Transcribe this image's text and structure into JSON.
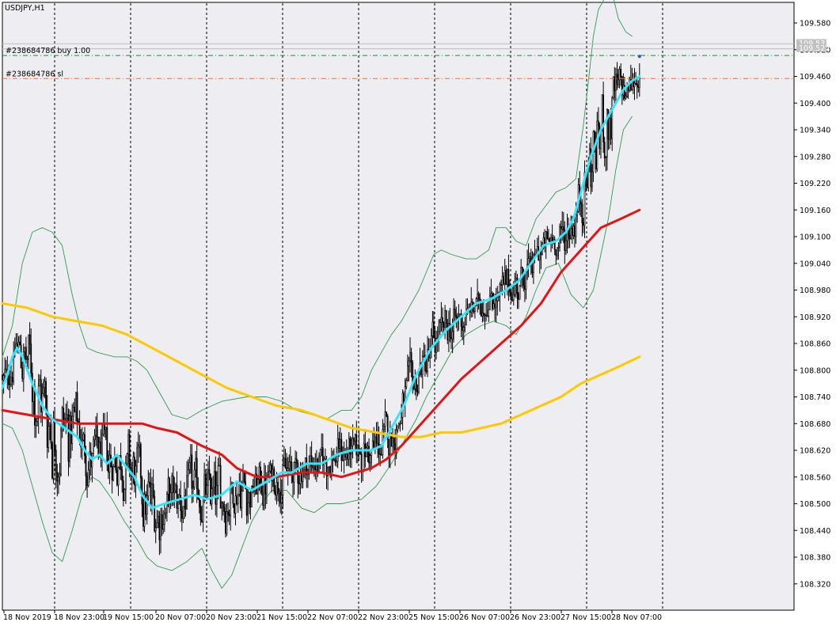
{
  "chart_data": {
    "type": "candlestick",
    "title": "USDJPY,H1",
    "colors": {
      "background": "#ffffff",
      "plot_background": "#ededf2",
      "grid": "#000000",
      "candle": "#000000",
      "ma_fast": "#33e6ff",
      "ma_mid": "#e01515",
      "ma_slow": "#ffc800",
      "bollinger": "#2e9e4e",
      "order_line": "#1a8a3a",
      "sl_line": "#ff6a2a",
      "price_line": "#c0c0c0"
    },
    "y_axis": {
      "min": 108.28,
      "max": 109.63,
      "ticks": [
        "109.580",
        "109.520",
        "109.460",
        "109.400",
        "109.340",
        "109.280",
        "109.220",
        "109.160",
        "109.100",
        "109.040",
        "108.980",
        "108.920",
        "108.860",
        "108.800",
        "108.740",
        "108.680",
        "108.620",
        "108.560",
        "108.500",
        "108.440",
        "108.380",
        "108.320"
      ]
    },
    "x_axis": {
      "ticks": [
        "18 Nov 2019",
        "18 Nov 23:00",
        "19 Nov 15:00",
        "20 Nov 07:00",
        "20 Nov 23:00",
        "21 Nov 15:00",
        "22 Nov 07:00",
        "22 Nov 23:00",
        "25 Nov 15:00",
        "26 Nov 07:00",
        "26 Nov 23:00",
        "27 Nov 15:00",
        "28 Nov 07:00"
      ],
      "vertical_grid_count": 9
    },
    "price_labels": [
      {
        "value": "109.533",
        "price": 109.533
      },
      {
        "value": "109.522",
        "price": 109.522
      }
    ],
    "orders": [
      {
        "label": "#238684786 buy 1.00",
        "price": 109.507,
        "kind": "entry"
      },
      {
        "label": "#238684786 sl",
        "price": 109.455,
        "kind": "stop"
      }
    ],
    "ma_fast": [
      [
        0,
        108.76
      ],
      [
        4,
        108.79
      ],
      [
        8,
        108.83
      ],
      [
        12,
        108.85
      ],
      [
        16,
        108.83
      ],
      [
        24,
        108.77
      ],
      [
        32,
        108.72
      ],
      [
        40,
        108.69
      ],
      [
        50,
        108.67
      ],
      [
        60,
        108.65
      ],
      [
        66,
        108.62
      ],
      [
        72,
        108.6
      ],
      [
        78,
        108.61
      ],
      [
        84,
        108.59
      ],
      [
        92,
        108.61
      ],
      [
        100,
        108.58
      ],
      [
        106,
        108.56
      ],
      [
        112,
        108.52
      ],
      [
        120,
        108.49
      ],
      [
        130,
        108.5
      ],
      [
        142,
        108.51
      ],
      [
        154,
        108.52
      ],
      [
        164,
        108.51
      ],
      [
        176,
        108.52
      ],
      [
        188,
        108.55
      ],
      [
        200,
        108.53
      ],
      [
        212,
        108.55
      ],
      [
        224,
        108.57
      ],
      [
        232,
        108.57
      ],
      [
        244,
        108.59
      ],
      [
        256,
        108.59
      ],
      [
        268,
        108.61
      ],
      [
        280,
        108.62
      ],
      [
        296,
        108.62
      ],
      [
        304,
        108.63
      ],
      [
        312,
        108.67
      ],
      [
        322,
        108.72
      ],
      [
        332,
        108.79
      ],
      [
        344,
        108.85
      ],
      [
        356,
        108.89
      ],
      [
        368,
        108.92
      ],
      [
        380,
        108.95
      ],
      [
        392,
        108.96
      ],
      [
        404,
        108.98
      ],
      [
        414,
        109.0
      ],
      [
        424,
        109.04
      ],
      [
        434,
        109.08
      ],
      [
        444,
        109.09
      ],
      [
        452,
        109.11
      ],
      [
        458,
        109.14
      ],
      [
        464,
        109.2
      ],
      [
        472,
        109.28
      ],
      [
        480,
        109.34
      ],
      [
        486,
        109.37
      ],
      [
        492,
        109.4
      ],
      [
        498,
        109.43
      ],
      [
        505,
        109.45
      ],
      [
        511,
        109.46
      ]
    ],
    "ma_mid": [
      [
        0,
        108.71
      ],
      [
        20,
        108.7
      ],
      [
        40,
        108.69
      ],
      [
        60,
        108.68
      ],
      [
        80,
        108.68
      ],
      [
        100,
        108.68
      ],
      [
        112,
        108.68
      ],
      [
        124,
        108.67
      ],
      [
        140,
        108.66
      ],
      [
        160,
        108.63
      ],
      [
        176,
        108.61
      ],
      [
        188,
        108.58
      ],
      [
        204,
        108.56
      ],
      [
        220,
        108.56
      ],
      [
        240,
        108.57
      ],
      [
        256,
        108.57
      ],
      [
        272,
        108.56
      ],
      [
        284,
        108.57
      ],
      [
        296,
        108.58
      ],
      [
        308,
        108.6
      ],
      [
        320,
        108.63
      ],
      [
        336,
        108.68
      ],
      [
        352,
        108.73
      ],
      [
        368,
        108.78
      ],
      [
        384,
        108.82
      ],
      [
        400,
        108.86
      ],
      [
        416,
        108.9
      ],
      [
        432,
        108.95
      ],
      [
        448,
        109.02
      ],
      [
        464,
        109.07
      ],
      [
        480,
        109.12
      ],
      [
        496,
        109.14
      ],
      [
        511,
        109.16
      ]
    ],
    "ma_slow": [
      [
        0,
        108.95
      ],
      [
        20,
        108.94
      ],
      [
        40,
        108.92
      ],
      [
        60,
        108.91
      ],
      [
        80,
        108.9
      ],
      [
        100,
        108.88
      ],
      [
        120,
        108.85
      ],
      [
        140,
        108.82
      ],
      [
        160,
        108.79
      ],
      [
        180,
        108.76
      ],
      [
        200,
        108.74
      ],
      [
        220,
        108.72
      ],
      [
        240,
        108.71
      ],
      [
        260,
        108.69
      ],
      [
        280,
        108.67
      ],
      [
        300,
        108.66
      ],
      [
        320,
        108.65
      ],
      [
        336,
        108.65
      ],
      [
        352,
        108.66
      ],
      [
        368,
        108.66
      ],
      [
        384,
        108.67
      ],
      [
        400,
        108.68
      ],
      [
        416,
        108.7
      ],
      [
        432,
        108.72
      ],
      [
        448,
        108.74
      ],
      [
        464,
        108.77
      ],
      [
        480,
        108.79
      ],
      [
        496,
        108.81
      ],
      [
        511,
        108.83
      ]
    ],
    "bb_upper": [
      [
        0,
        108.83
      ],
      [
        8,
        108.9
      ],
      [
        16,
        109.04
      ],
      [
        24,
        109.11
      ],
      [
        32,
        109.12
      ],
      [
        40,
        109.11
      ],
      [
        48,
        109.08
      ],
      [
        56,
        108.97
      ],
      [
        62,
        108.9
      ],
      [
        68,
        108.85
      ],
      [
        76,
        108.84
      ],
      [
        90,
        108.83
      ],
      [
        100,
        108.83
      ],
      [
        108,
        108.82
      ],
      [
        116,
        108.8
      ],
      [
        126,
        108.75
      ],
      [
        136,
        108.7
      ],
      [
        148,
        108.69
      ],
      [
        160,
        108.71
      ],
      [
        176,
        108.73
      ],
      [
        196,
        108.74
      ],
      [
        212,
        108.74
      ],
      [
        224,
        108.73
      ],
      [
        236,
        108.71
      ],
      [
        248,
        108.7
      ],
      [
        260,
        108.69
      ],
      [
        272,
        108.71
      ],
      [
        280,
        108.71
      ],
      [
        288,
        108.74
      ],
      [
        296,
        108.8
      ],
      [
        304,
        108.84
      ],
      [
        312,
        108.88
      ],
      [
        320,
        108.91
      ],
      [
        328,
        108.95
      ],
      [
        334,
        108.98
      ],
      [
        340,
        109.02
      ],
      [
        346,
        109.06
      ],
      [
        352,
        109.07
      ],
      [
        360,
        109.06
      ],
      [
        372,
        109.05
      ],
      [
        380,
        109.05
      ],
      [
        390,
        109.07
      ],
      [
        396,
        109.12
      ],
      [
        404,
        109.12
      ],
      [
        412,
        109.09
      ],
      [
        420,
        109.08
      ],
      [
        428,
        109.14
      ],
      [
        436,
        109.17
      ],
      [
        444,
        109.2
      ],
      [
        452,
        109.21
      ],
      [
        460,
        109.23
      ],
      [
        466,
        109.35
      ],
      [
        470,
        109.45
      ],
      [
        474,
        109.55
      ],
      [
        478,
        109.61
      ],
      [
        484,
        109.64
      ],
      [
        488,
        109.66
      ],
      [
        494,
        109.59
      ],
      [
        500,
        109.56
      ],
      [
        505,
        109.55
      ]
    ],
    "bb_lower": [
      [
        0,
        108.68
      ],
      [
        8,
        108.67
      ],
      [
        16,
        108.62
      ],
      [
        24,
        108.54
      ],
      [
        32,
        108.46
      ],
      [
        40,
        108.39
      ],
      [
        48,
        108.37
      ],
      [
        56,
        108.44
      ],
      [
        64,
        108.52
      ],
      [
        72,
        108.56
      ],
      [
        78,
        108.55
      ],
      [
        88,
        108.51
      ],
      [
        98,
        108.46
      ],
      [
        108,
        108.42
      ],
      [
        116,
        108.38
      ],
      [
        124,
        108.36
      ],
      [
        136,
        108.35
      ],
      [
        148,
        108.37
      ],
      [
        160,
        108.4
      ],
      [
        168,
        108.35
      ],
      [
        176,
        108.31
      ],
      [
        184,
        108.34
      ],
      [
        192,
        108.4
      ],
      [
        200,
        108.46
      ],
      [
        208,
        108.5
      ],
      [
        216,
        108.53
      ],
      [
        228,
        108.53
      ],
      [
        240,
        108.49
      ],
      [
        250,
        108.48
      ],
      [
        260,
        108.5
      ],
      [
        272,
        108.5
      ],
      [
        288,
        108.51
      ],
      [
        300,
        108.54
      ],
      [
        312,
        108.59
      ],
      [
        322,
        108.64
      ],
      [
        332,
        108.69
      ],
      [
        340,
        108.74
      ],
      [
        348,
        108.78
      ],
      [
        356,
        108.82
      ],
      [
        362,
        108.85
      ],
      [
        372,
        108.88
      ],
      [
        384,
        108.9
      ],
      [
        394,
        108.91
      ],
      [
        404,
        108.9
      ],
      [
        412,
        108.88
      ],
      [
        420,
        108.92
      ],
      [
        428,
        108.98
      ],
      [
        436,
        109.03
      ],
      [
        446,
        109.04
      ],
      [
        456,
        108.97
      ],
      [
        466,
        108.94
      ],
      [
        474,
        108.98
      ],
      [
        480,
        109.06
      ],
      [
        486,
        109.14
      ],
      [
        492,
        109.25
      ],
      [
        498,
        109.34
      ],
      [
        505,
        109.37
      ]
    ]
  }
}
